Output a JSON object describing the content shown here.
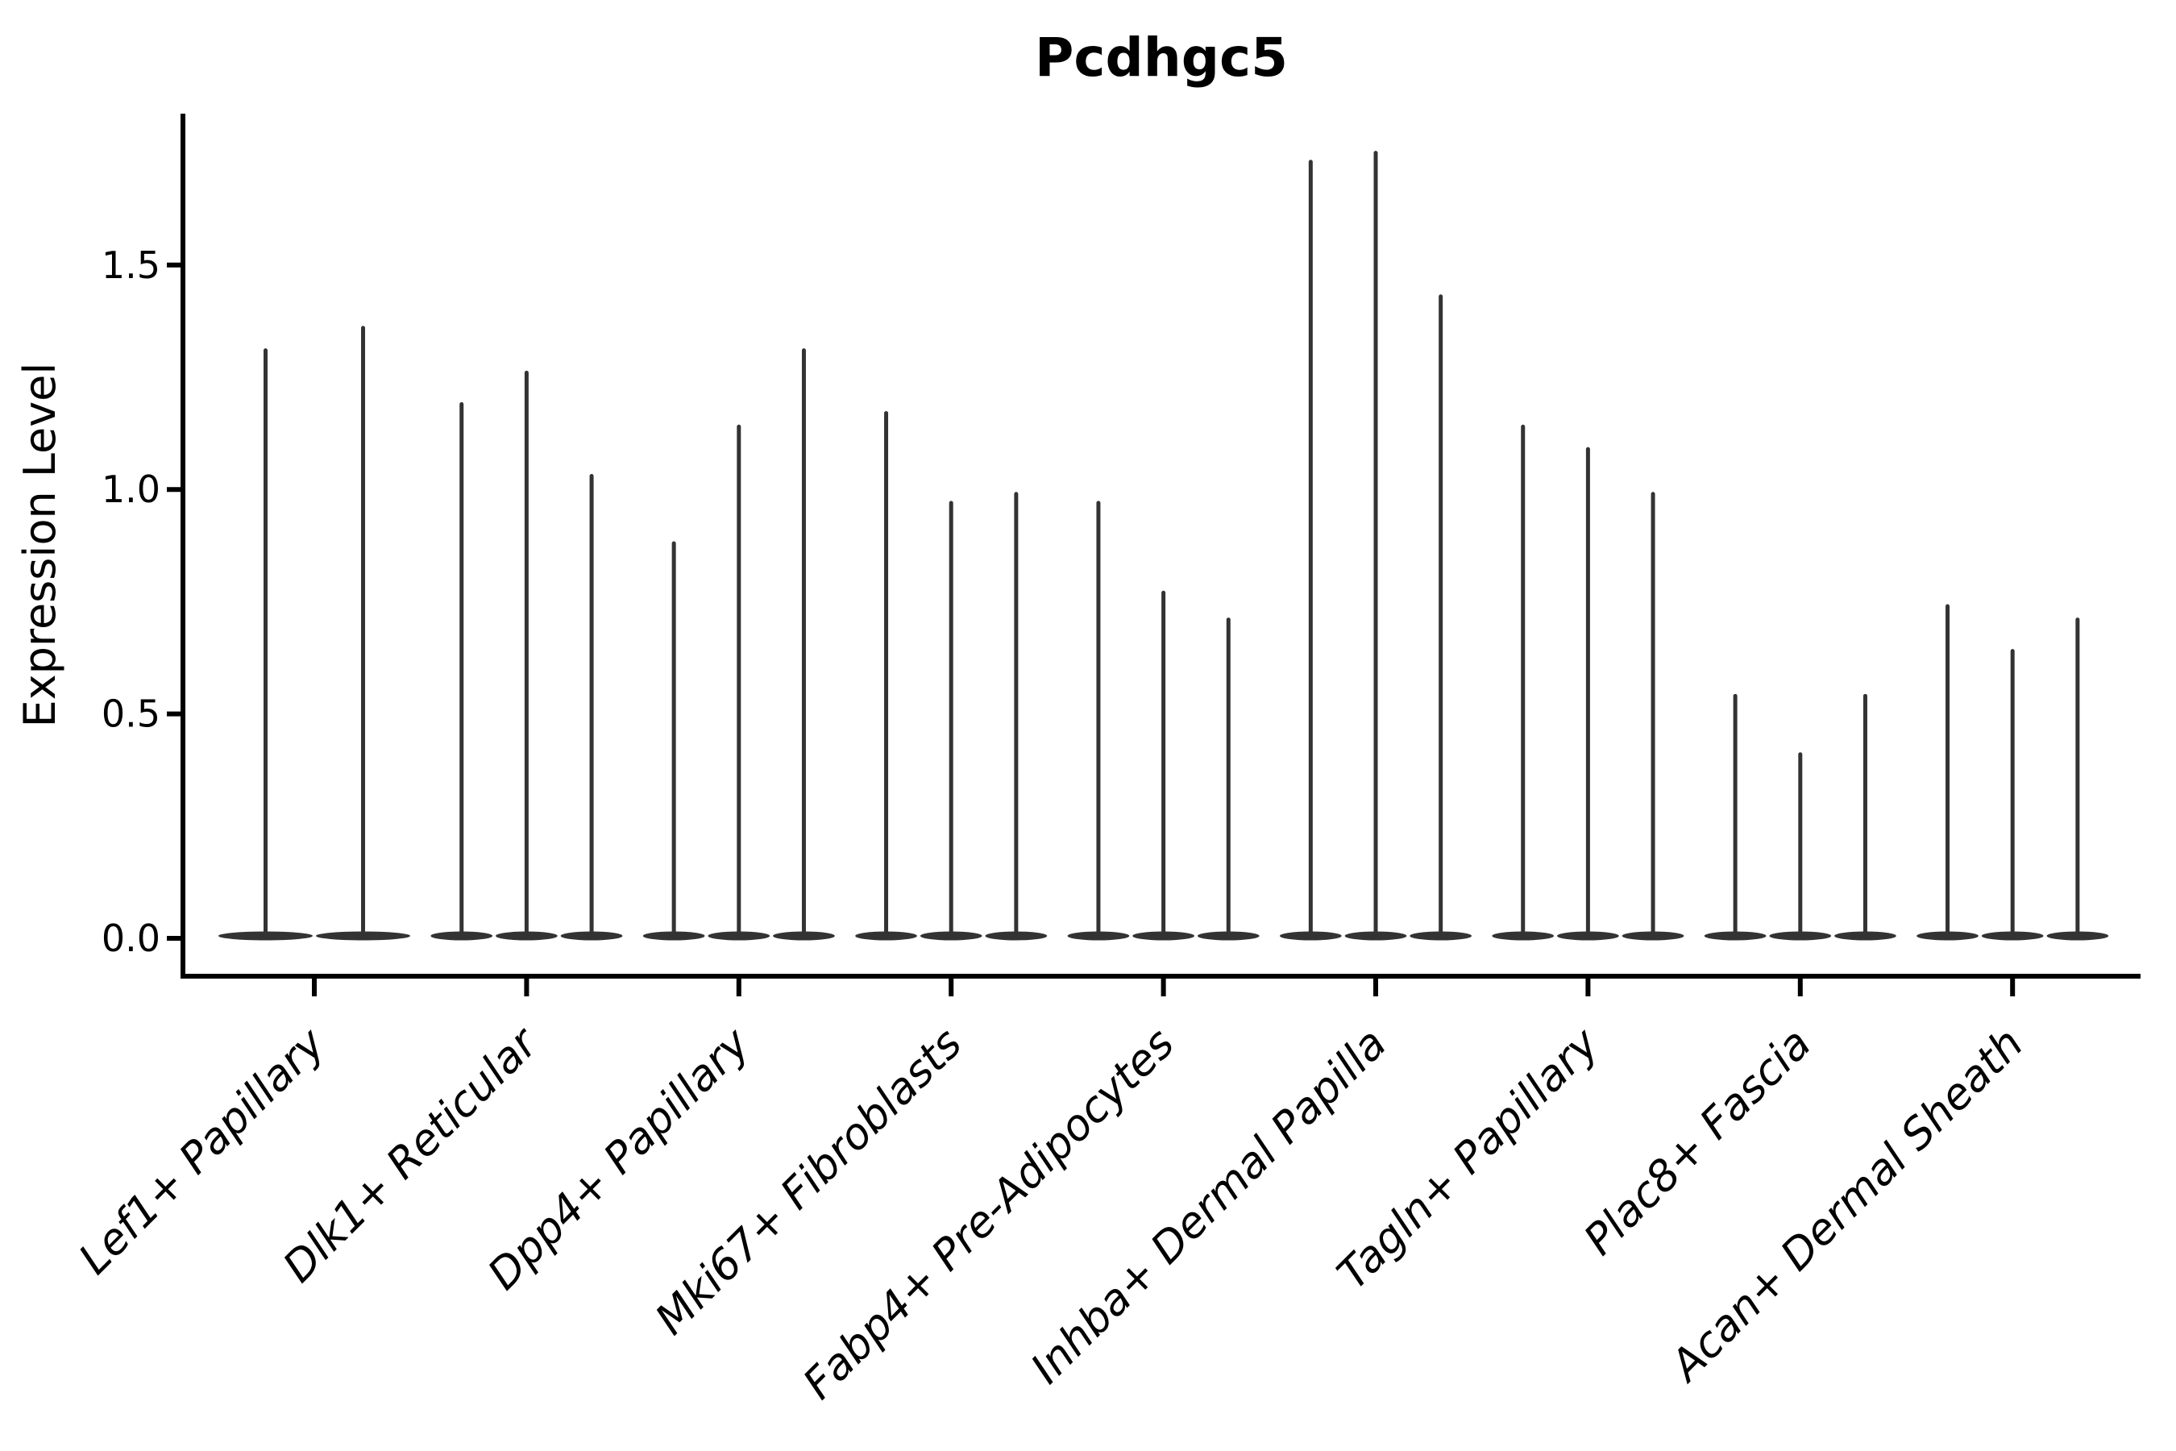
{
  "figure": {
    "background_color": "#ffffff"
  },
  "chart_data": {
    "type": "violin",
    "title": "Pcdhgc5",
    "xlabel": "",
    "ylabel": "Expression Level",
    "grid": false,
    "legend": "none",
    "ink_color": "#333333",
    "axis_color": "#000000",
    "yticks": [
      0.0,
      0.5,
      1.0,
      1.5
    ],
    "ytick_labels": [
      "0.0",
      "0.5",
      "1.0",
      "1.5"
    ],
    "ylim": [
      -0.0875,
      1.8375
    ],
    "baseline_value": 0.0,
    "note": "Each violin has its distribution mass at 0 with a thin spike reaching the maximum expression value.",
    "categories": [
      {
        "label": "Lef1+ Papillary",
        "violin_max_values": [
          1.31,
          1.36
        ]
      },
      {
        "label": "Dlk1+ Reticular",
        "violin_max_values": [
          1.19,
          1.26,
          1.03
        ]
      },
      {
        "label": "Dpp4+ Papillary",
        "violin_max_values": [
          0.88,
          1.14,
          1.31
        ]
      },
      {
        "label": "Mki67+ Fibroblasts",
        "violin_max_values": [
          1.17,
          0.97,
          0.99
        ]
      },
      {
        "label": "Fabp4+ Pre-Adipocytes",
        "violin_max_values": [
          0.97,
          0.77,
          0.71
        ]
      },
      {
        "label": "Inhba+ Dermal Papilla",
        "violin_max_values": [
          1.73,
          1.75,
          1.43
        ]
      },
      {
        "label": "Tagln+ Papillary",
        "violin_max_values": [
          1.14,
          1.09,
          0.99
        ]
      },
      {
        "label": "Plac8+ Fascia",
        "violin_max_values": [
          0.54,
          0.41,
          0.54
        ]
      },
      {
        "label": "Acan+ Dermal Sheath",
        "violin_max_values": [
          0.74,
          0.64,
          0.71
        ]
      }
    ]
  }
}
